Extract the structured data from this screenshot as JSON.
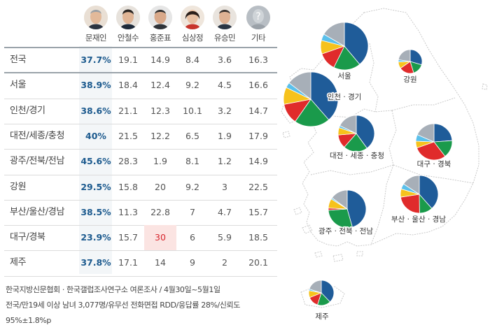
{
  "candidates": [
    {
      "name": "문재인",
      "face": "moon"
    },
    {
      "name": "안철수",
      "face": "ahn"
    },
    {
      "name": "홍준표",
      "face": "hong"
    },
    {
      "name": "심상정",
      "face": "sim"
    },
    {
      "name": "유승민",
      "face": "yoo"
    },
    {
      "name": "기타",
      "face": "other"
    }
  ],
  "rows": [
    {
      "region": "전국",
      "values": [
        "37.7%",
        "19.1",
        "14.9",
        "8.4",
        "3.6",
        "16.3"
      ]
    },
    {
      "region": "서울",
      "values": [
        "38.9%",
        "18.4",
        "12.4",
        "9.2",
        "4.5",
        "16.6"
      ]
    },
    {
      "region": "인천/경기",
      "values": [
        "38.6%",
        "21.1",
        "12.3",
        "10.1",
        "3.2",
        "14.7"
      ]
    },
    {
      "region": "대전/세종/충청",
      "values": [
        "40%",
        "21.5",
        "12.2",
        "6.5",
        "1.9",
        "17.9"
      ]
    },
    {
      "region": "광주/전북/전남",
      "values": [
        "45.6%",
        "28.3",
        "1.9",
        "8.1",
        "1.2",
        "14.9"
      ]
    },
    {
      "region": "강원",
      "values": [
        "29.5%",
        "15.8",
        "20",
        "9.2",
        "3",
        "22.5"
      ]
    },
    {
      "region": "부산/울산/경남",
      "values": [
        "38.5%",
        "11.3",
        "22.8",
        "7",
        "4.7",
        "15.7"
      ]
    },
    {
      "region": "대구/경북",
      "values": [
        "23.9%",
        "15.7",
        "30",
        "6",
        "5.9",
        "18.5"
      ]
    },
    {
      "region": "제주",
      "values": [
        "37.8%",
        "17.1",
        "14",
        "9",
        "2",
        "20.1"
      ]
    }
  ],
  "notes": [
    "한국지방신문협회 · 한국갤럽조사연구소 여론조사 / 4월30일~5월1일",
    "전국/만19세 이상 남녀 3,077명/유무선 전화면접 RDD/응답률 28%/신뢰도",
    "95%±1.8%p"
  ],
  "colors": {
    "moon": "#1f5c99",
    "ahn": "#1a9a4b",
    "hong": "#e02b2b",
    "sim": "#f6c21c",
    "yoo": "#5bc0eb",
    "other": "#a7afb8",
    "moon_text": "#1c5a8e",
    "highlight_red": "#d7262d",
    "map_fill": "#ffffff",
    "map_stroke": "#c9c9c9"
  },
  "chart_data": {
    "type": "pie",
    "series_order": [
      "문재인",
      "안철수",
      "홍준표",
      "심상정",
      "유승민",
      "기타"
    ],
    "map_pies": [
      {
        "label": "서울",
        "values": [
          38.9,
          18.4,
          12.4,
          9.2,
          4.5,
          16.6
        ]
      },
      {
        "label": "강원",
        "values": [
          29.5,
          15.8,
          20,
          9.2,
          3,
          22.5
        ]
      },
      {
        "label": "인천 · 경기",
        "values": [
          38.6,
          21.1,
          12.3,
          10.1,
          3.2,
          14.7
        ]
      },
      {
        "label": "대전 · 세종 · 충청",
        "values": [
          40,
          21.5,
          12.2,
          6.5,
          1.9,
          17.9
        ]
      },
      {
        "label": "대구 · 경북",
        "values": [
          23.9,
          15.7,
          30,
          6,
          5.9,
          18.5
        ]
      },
      {
        "label": "부산 · 울산 · 경남",
        "values": [
          38.5,
          11.3,
          22.8,
          7,
          4.7,
          15.7
        ]
      },
      {
        "label": "광주 · 전북 · 전남",
        "values": [
          45.6,
          28.3,
          1.9,
          8.1,
          1.2,
          14.9
        ]
      },
      {
        "label": "제주",
        "values": [
          37.8,
          17.1,
          14,
          9,
          2,
          20.1
        ]
      }
    ]
  }
}
